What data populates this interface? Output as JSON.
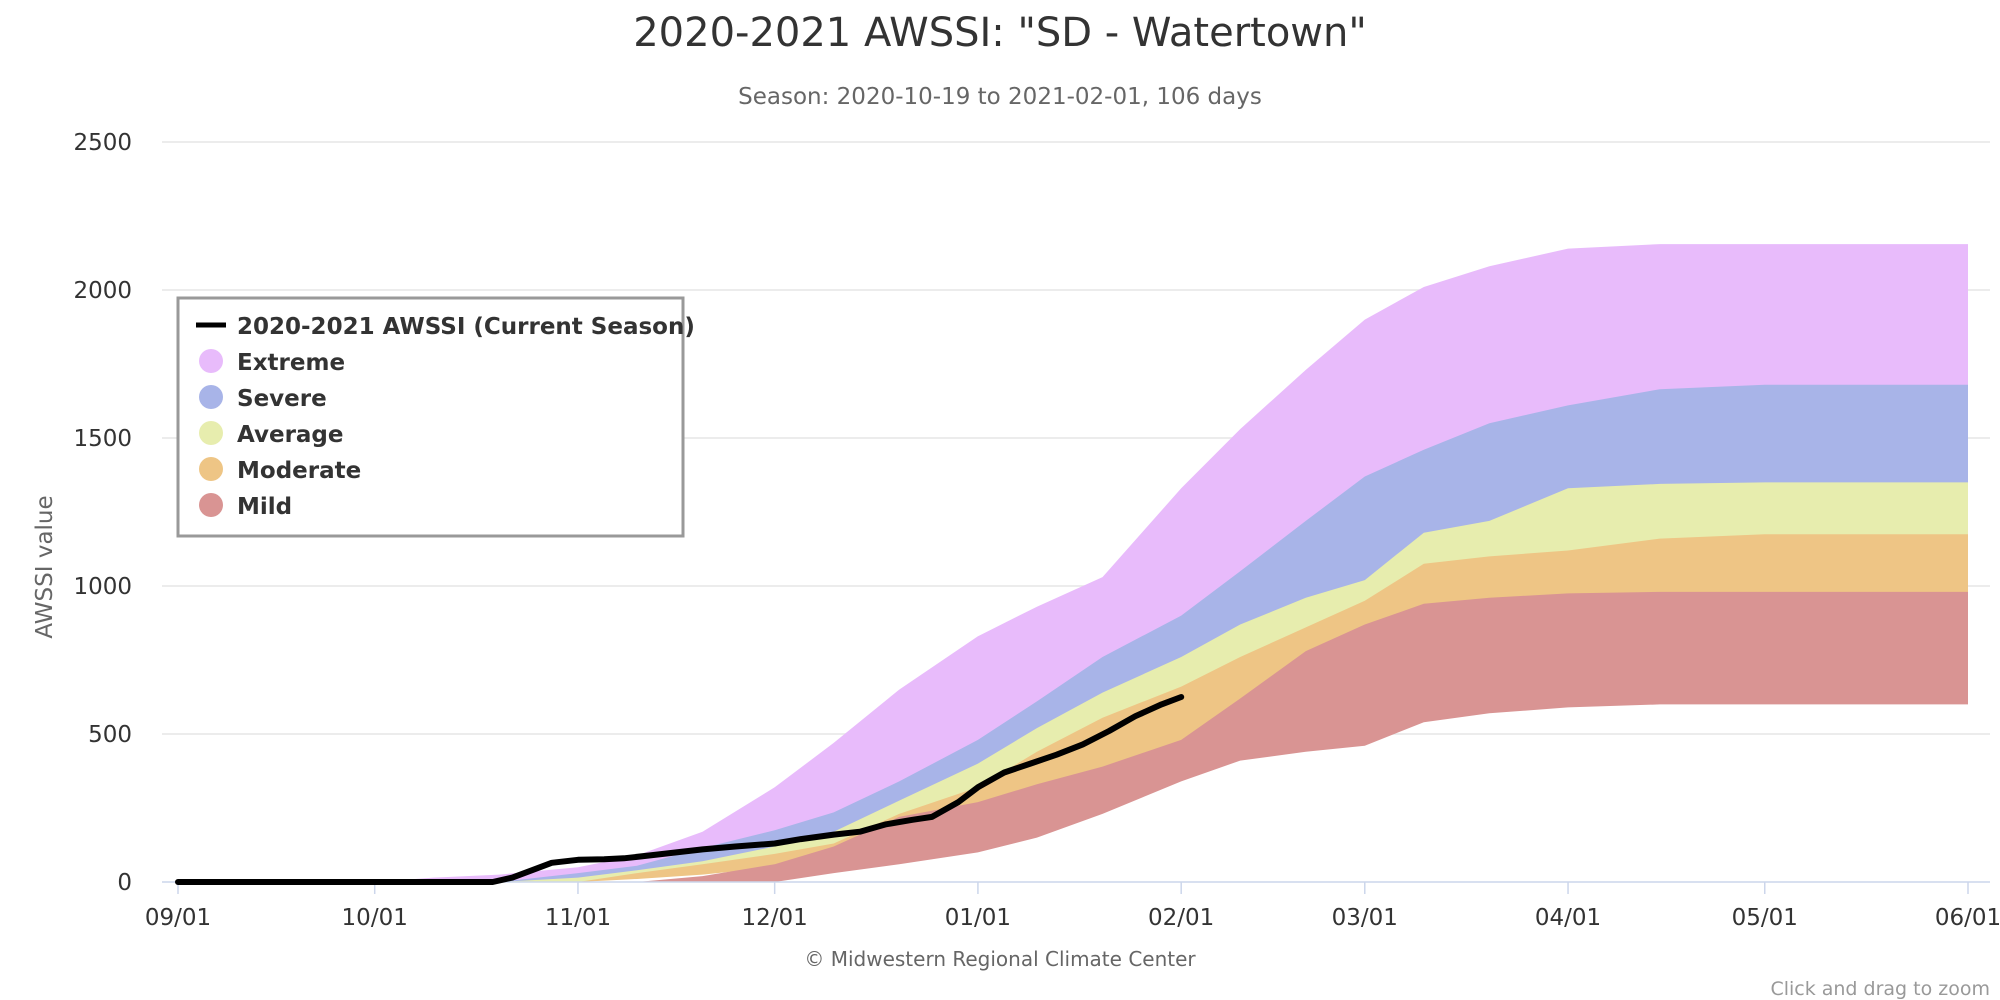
{
  "chart_data": {
    "type": "area",
    "title": "2020-2021 AWSSI: \"SD - Watertown\"",
    "subtitle": "Season: 2020-10-19 to 2021-02-01, 106 days",
    "ylabel": "AWSSI value",
    "xlabel": "",
    "credit": "© Midwestern Regional Climate Center",
    "zoom_hint": "Click and drag to zoom",
    "x_range": [
      "2020-09-01",
      "2021-06-01"
    ],
    "ylim": [
      0,
      2500
    ],
    "y_ticks": [
      0,
      500,
      1000,
      1500,
      2000,
      2500
    ],
    "x_ticks": [
      {
        "date": "2020-09-01",
        "label": "09/01"
      },
      {
        "date": "2020-10-01",
        "label": "10/01"
      },
      {
        "date": "2020-11-01",
        "label": "11/01"
      },
      {
        "date": "2020-12-01",
        "label": "12/01"
      },
      {
        "date": "2021-01-01",
        "label": "01/01"
      },
      {
        "date": "2021-02-01",
        "label": "02/01"
      },
      {
        "date": "2021-03-01",
        "label": "03/01"
      },
      {
        "date": "2021-04-01",
        "label": "04/01"
      },
      {
        "date": "2021-05-01",
        "label": "05/01"
      },
      {
        "date": "2021-06-01",
        "label": "06/01"
      }
    ],
    "grid": "horizontal",
    "legend_position": "top-left",
    "colors": {
      "current": "#000000",
      "extreme": "#e8bbfb",
      "severe": "#a8b4e8",
      "average": "#e7edae",
      "moderate": "#eec585",
      "mild": "#d99493"
    },
    "band_dates": [
      "2020-09-01",
      "2020-10-01",
      "2020-10-10",
      "2020-10-20",
      "2020-11-01",
      "2020-11-10",
      "2020-11-20",
      "2020-12-01",
      "2020-12-10",
      "2020-12-20",
      "2021-01-01",
      "2021-01-10",
      "2021-01-20",
      "2021-02-01",
      "2021-02-10",
      "2021-02-20",
      "2021-03-01",
      "2021-03-10",
      "2021-03-20",
      "2021-04-01",
      "2021-04-15",
      "2021-05-01",
      "2021-06-01"
    ],
    "bands": [
      {
        "name": "Extreme",
        "color": "#e8bbfb",
        "lower": [
          0,
          0,
          0,
          0,
          0,
          30,
          70,
          115,
          160,
          270,
          360,
          430,
          520,
          630,
          720,
          820,
          900,
          960,
          1060,
          1145,
          1250,
          1320,
          1330
        ],
        "upper": [
          0,
          0,
          15,
          25,
          50,
          90,
          170,
          320,
          470,
          650,
          830,
          930,
          1030,
          1330,
          1530,
          1730,
          1900,
          2010,
          2080,
          2140,
          2155,
          2155,
          2155
        ]
      },
      {
        "name": "Severe",
        "color": "#a8b4e8",
        "lower": [
          0,
          0,
          0,
          0,
          0,
          25,
          50,
          95,
          130,
          215,
          300,
          375,
          460,
          560,
          640,
          740,
          810,
          880,
          970,
          1080,
          1150,
          1165,
          1170
        ],
        "upper": [
          0,
          0,
          0,
          0,
          30,
          55,
          115,
          175,
          235,
          340,
          480,
          610,
          760,
          900,
          1050,
          1220,
          1370,
          1460,
          1550,
          1610,
          1665,
          1680,
          1680
        ]
      },
      {
        "name": "Average",
        "color": "#e7edae",
        "lower": [
          0,
          0,
          0,
          0,
          0,
          20,
          40,
          75,
          100,
          160,
          250,
          335,
          410,
          480,
          560,
          640,
          700,
          750,
          820,
          950,
          1050,
          1065,
          1070
        ],
        "upper": [
          0,
          0,
          0,
          0,
          15,
          40,
          70,
          120,
          170,
          275,
          400,
          520,
          640,
          760,
          870,
          960,
          1020,
          1180,
          1220,
          1330,
          1345,
          1350,
          1350
        ]
      },
      {
        "name": "Moderate",
        "color": "#eec585",
        "lower": [
          0,
          0,
          0,
          0,
          0,
          10,
          25,
          50,
          70,
          115,
          200,
          280,
          350,
          420,
          500,
          570,
          620,
          675,
          740,
          840,
          955,
          970,
          975
        ],
        "upper": [
          0,
          0,
          0,
          0,
          0,
          30,
          60,
          95,
          130,
          230,
          320,
          440,
          555,
          660,
          760,
          860,
          950,
          1075,
          1100,
          1120,
          1160,
          1175,
          1175
        ]
      },
      {
        "name": "Mild",
        "color": "#d99493",
        "lower": [
          0,
          0,
          0,
          0,
          0,
          0,
          0,
          0,
          30,
          60,
          100,
          150,
          230,
          340,
          410,
          440,
          460,
          540,
          570,
          590,
          600,
          600,
          600
        ],
        "upper": [
          0,
          0,
          0,
          0,
          0,
          0,
          20,
          60,
          120,
          220,
          270,
          330,
          390,
          480,
          620,
          780,
          870,
          940,
          960,
          975,
          980,
          980,
          980
        ]
      }
    ],
    "series": [
      {
        "name": "2020-2021 AWSSI (Current Season)",
        "color": "#000000",
        "x": [
          "2020-09-01",
          "2020-10-01",
          "2020-10-19",
          "2020-10-22",
          "2020-10-25",
          "2020-10-28",
          "2020-11-01",
          "2020-11-05",
          "2020-11-08",
          "2020-11-12",
          "2020-11-16",
          "2020-11-20",
          "2020-11-25",
          "2020-12-01",
          "2020-12-05",
          "2020-12-10",
          "2020-12-14",
          "2020-12-18",
          "2020-12-22",
          "2020-12-25",
          "2020-12-29",
          "2021-01-01",
          "2021-01-05",
          "2021-01-09",
          "2021-01-13",
          "2021-01-17",
          "2021-01-21",
          "2021-01-25",
          "2021-01-29",
          "2021-02-01"
        ],
        "y": [
          0,
          0,
          0,
          15,
          40,
          65,
          75,
          77,
          80,
          90,
          100,
          110,
          120,
          130,
          145,
          160,
          170,
          195,
          210,
          220,
          270,
          320,
          370,
          400,
          430,
          465,
          510,
          560,
          600,
          625
        ]
      }
    ]
  }
}
